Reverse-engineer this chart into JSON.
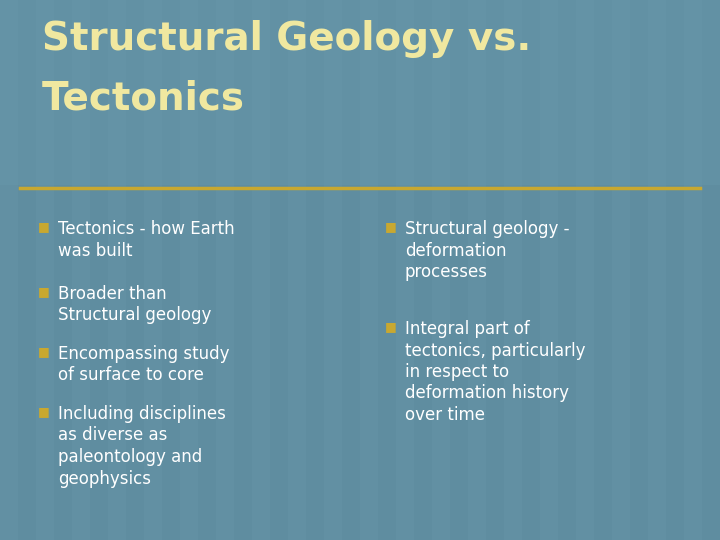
{
  "title_line1": "Structural Geology vs.",
  "title_line2": "Tectonics",
  "title_color": "#F0E8A0",
  "background_color": "#5F8DA0",
  "title_bg_color": "#6899AB",
  "separator_color": "#C8A830",
  "bullet_color": "#C8A830",
  "text_color": "#FFFFFF",
  "left_bullets": [
    "Tectonics - how Earth\nwas built",
    "Broader than\nStructural geology",
    "Encompassing study\nof surface to core",
    "Including disciplines\nas diverse as\npaleontology and\ngeophysics"
  ],
  "right_bullets": [
    "Structural geology -\ndeformation\nprocesses",
    "Integral part of\ntectonics, particularly\nin respect to\ndeformation history\nover time"
  ],
  "figsize": [
    7.2,
    5.4
  ],
  "dpi": 100
}
